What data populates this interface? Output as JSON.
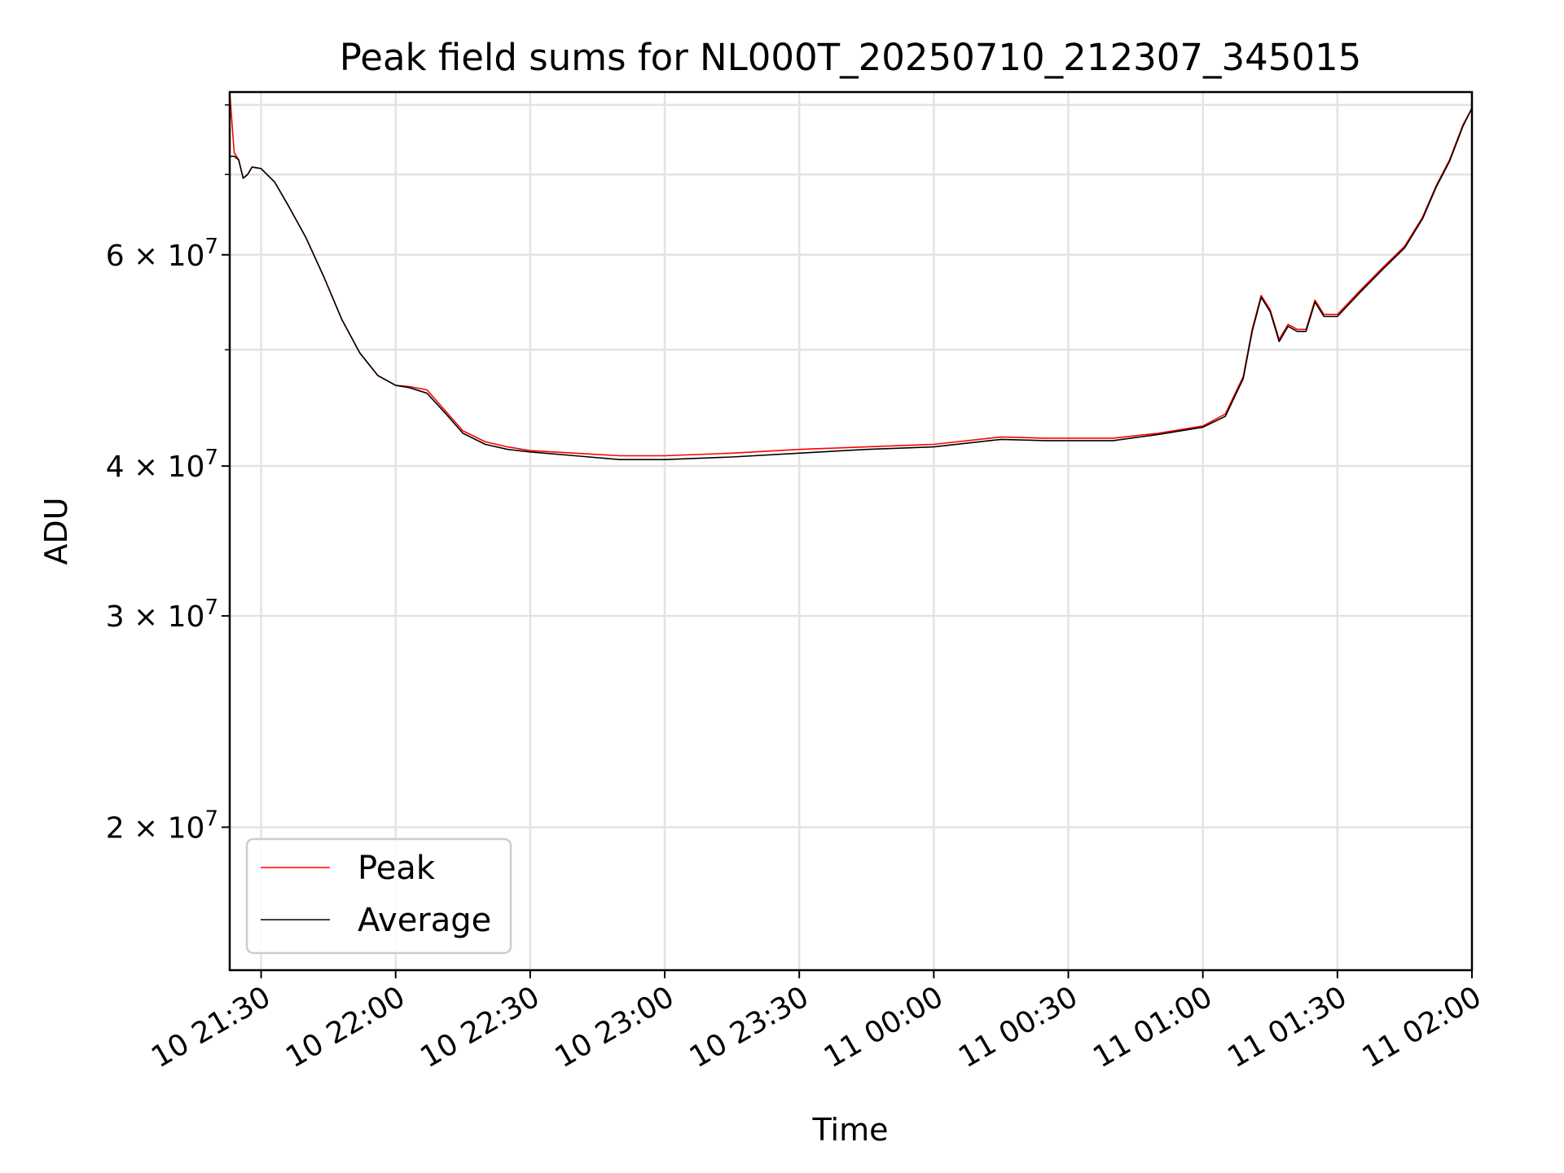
{
  "chart_data": {
    "type": "line",
    "title": "Peak field sums for NL000T_20250710_212307_345015",
    "xlabel": "Time",
    "ylabel": "ADU",
    "yscale": "log",
    "grid": true,
    "legend_position": "lower-left",
    "xlim": [
      "2025-07-10 21:23",
      "2025-07-11 02:00"
    ],
    "ylim": [
      15200000,
      82000000
    ],
    "x_ticks": [
      "10 21:30",
      "10 22:00",
      "10 22:30",
      "10 23:00",
      "10 23:30",
      "11 00:00",
      "11 00:30",
      "11 01:00",
      "11 01:30",
      "11 02:00"
    ],
    "y_ticks": [
      {
        "value": 20000000,
        "mantissa": "2",
        "exponent": "7"
      },
      {
        "value": 30000000,
        "mantissa": "3",
        "exponent": "7"
      },
      {
        "value": 40000000,
        "mantissa": "4",
        "exponent": "7"
      },
      {
        "value": 60000000,
        "mantissa": "6",
        "exponent": "7"
      }
    ],
    "y_minor_ticks": [
      50000000,
      70000000,
      80000000
    ],
    "series": [
      {
        "name": "Peak",
        "color": "#ff0000",
        "points": [
          [
            "2025-07-10 21:23",
            82000000
          ],
          [
            "2025-07-10 21:24",
            73000000
          ],
          [
            "2025-07-10 21:25",
            72000000
          ],
          [
            "2025-07-10 21:26",
            69500000
          ],
          [
            "2025-07-10 21:27",
            70000000
          ],
          [
            "2025-07-10 21:28",
            71000000
          ],
          [
            "2025-07-10 21:30",
            70800000
          ],
          [
            "2025-07-10 21:33",
            69000000
          ],
          [
            "2025-07-10 21:36",
            66000000
          ],
          [
            "2025-07-10 21:40",
            62000000
          ],
          [
            "2025-07-10 21:44",
            57500000
          ],
          [
            "2025-07-10 21:48",
            53000000
          ],
          [
            "2025-07-10 21:52",
            49700000
          ],
          [
            "2025-07-10 21:56",
            47600000
          ],
          [
            "2025-07-10 22:00",
            46700000
          ],
          [
            "2025-07-10 22:03",
            46600000
          ],
          [
            "2025-07-10 22:07",
            46300000
          ],
          [
            "2025-07-10 22:11",
            44500000
          ],
          [
            "2025-07-10 22:15",
            42800000
          ],
          [
            "2025-07-10 22:20",
            41900000
          ],
          [
            "2025-07-10 22:25",
            41500000
          ],
          [
            "2025-07-10 22:30",
            41200000
          ],
          [
            "2025-07-10 22:40",
            41000000
          ],
          [
            "2025-07-10 22:50",
            40800000
          ],
          [
            "2025-07-10 23:00",
            40800000
          ],
          [
            "2025-07-10 23:15",
            41000000
          ],
          [
            "2025-07-10 23:30",
            41300000
          ],
          [
            "2025-07-10 23:45",
            41500000
          ],
          [
            "2025-07-11 00:00",
            41700000
          ],
          [
            "2025-07-11 00:10",
            42100000
          ],
          [
            "2025-07-11 00:15",
            42300000
          ],
          [
            "2025-07-11 00:25",
            42200000
          ],
          [
            "2025-07-11 00:40",
            42200000
          ],
          [
            "2025-07-11 00:50",
            42600000
          ],
          [
            "2025-07-11 01:00",
            43200000
          ],
          [
            "2025-07-11 01:05",
            44200000
          ],
          [
            "2025-07-11 01:09",
            47500000
          ],
          [
            "2025-07-11 01:11",
            52000000
          ],
          [
            "2025-07-11 01:13",
            55500000
          ],
          [
            "2025-07-11 01:15",
            54000000
          ],
          [
            "2025-07-11 01:17",
            51000000
          ],
          [
            "2025-07-11 01:19",
            52500000
          ],
          [
            "2025-07-11 01:21",
            52000000
          ],
          [
            "2025-07-11 01:23",
            52000000
          ],
          [
            "2025-07-11 01:25",
            55000000
          ],
          [
            "2025-07-11 01:27",
            53500000
          ],
          [
            "2025-07-11 01:30",
            53500000
          ],
          [
            "2025-07-11 01:35",
            56000000
          ],
          [
            "2025-07-11 01:40",
            58500000
          ],
          [
            "2025-07-11 01:45",
            61000000
          ],
          [
            "2025-07-11 01:49",
            64500000
          ],
          [
            "2025-07-11 01:52",
            68500000
          ],
          [
            "2025-07-11 01:55",
            72000000
          ],
          [
            "2025-07-11 01:58",
            77000000
          ],
          [
            "2025-07-11 02:00",
            79500000
          ]
        ]
      },
      {
        "name": "Average",
        "color": "#000000",
        "points": [
          [
            "2025-07-10 21:23",
            15200000
          ],
          [
            "2025-07-10 21:23",
            72500000
          ],
          [
            "2025-07-10 21:24",
            72500000
          ],
          [
            "2025-07-10 21:25",
            72000000
          ],
          [
            "2025-07-10 21:26",
            69500000
          ],
          [
            "2025-07-10 21:27",
            70000000
          ],
          [
            "2025-07-10 21:28",
            71000000
          ],
          [
            "2025-07-10 21:30",
            70800000
          ],
          [
            "2025-07-10 21:33",
            69000000
          ],
          [
            "2025-07-10 21:36",
            66000000
          ],
          [
            "2025-07-10 21:40",
            62000000
          ],
          [
            "2025-07-10 21:44",
            57500000
          ],
          [
            "2025-07-10 21:48",
            53000000
          ],
          [
            "2025-07-10 21:52",
            49700000
          ],
          [
            "2025-07-10 21:56",
            47600000
          ],
          [
            "2025-07-10 22:00",
            46700000
          ],
          [
            "2025-07-10 22:03",
            46500000
          ],
          [
            "2025-07-10 22:07",
            46000000
          ],
          [
            "2025-07-10 22:11",
            44300000
          ],
          [
            "2025-07-10 22:15",
            42600000
          ],
          [
            "2025-07-10 22:20",
            41700000
          ],
          [
            "2025-07-10 22:25",
            41300000
          ],
          [
            "2025-07-10 22:30",
            41100000
          ],
          [
            "2025-07-10 22:40",
            40800000
          ],
          [
            "2025-07-10 22:50",
            40500000
          ],
          [
            "2025-07-10 23:00",
            40500000
          ],
          [
            "2025-07-10 23:15",
            40700000
          ],
          [
            "2025-07-10 23:30",
            41000000
          ],
          [
            "2025-07-10 23:45",
            41300000
          ],
          [
            "2025-07-11 00:00",
            41500000
          ],
          [
            "2025-07-11 00:10",
            41900000
          ],
          [
            "2025-07-11 00:15",
            42100000
          ],
          [
            "2025-07-11 00:25",
            42000000
          ],
          [
            "2025-07-11 00:40",
            42000000
          ],
          [
            "2025-07-11 00:50",
            42500000
          ],
          [
            "2025-07-11 01:00",
            43100000
          ],
          [
            "2025-07-11 01:05",
            44000000
          ],
          [
            "2025-07-11 01:09",
            47300000
          ],
          [
            "2025-07-11 01:11",
            51800000
          ],
          [
            "2025-07-11 01:13",
            55300000
          ],
          [
            "2025-07-11 01:15",
            53800000
          ],
          [
            "2025-07-11 01:17",
            50800000
          ],
          [
            "2025-07-11 01:19",
            52300000
          ],
          [
            "2025-07-11 01:21",
            51800000
          ],
          [
            "2025-07-11 01:23",
            51800000
          ],
          [
            "2025-07-11 01:25",
            54800000
          ],
          [
            "2025-07-11 01:27",
            53300000
          ],
          [
            "2025-07-11 01:30",
            53300000
          ],
          [
            "2025-07-11 01:35",
            55800000
          ],
          [
            "2025-07-11 01:40",
            58300000
          ],
          [
            "2025-07-11 01:45",
            60800000
          ],
          [
            "2025-07-11 01:49",
            64300000
          ],
          [
            "2025-07-11 01:52",
            68300000
          ],
          [
            "2025-07-11 01:55",
            71800000
          ],
          [
            "2025-07-11 01:58",
            76800000
          ],
          [
            "2025-07-11 02:00",
            79500000
          ]
        ]
      }
    ]
  }
}
